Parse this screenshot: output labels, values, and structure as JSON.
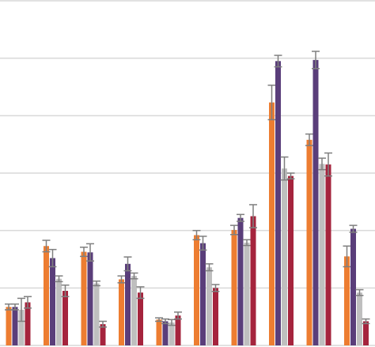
{
  "chart_data": {
    "type": "bar",
    "categories": [
      null,
      null,
      null,
      null,
      null,
      null,
      null,
      null,
      null,
      null
    ],
    "series": [
      {
        "color": "#ed7d31",
        "values": [
          0.67,
          1.73,
          1.63,
          1.15,
          0.45,
          1.92,
          2.01,
          4.23,
          3.58,
          1.55
        ],
        "errors": [
          0.05,
          0.1,
          0.08,
          0.06,
          0.03,
          0.08,
          0.08,
          0.3,
          0.1,
          0.18
        ]
      },
      {
        "color": "#5a3e7a",
        "values": [
          0.67,
          1.52,
          1.62,
          1.42,
          0.42,
          1.78,
          2.22,
          4.95,
          4.97,
          2.03
        ],
        "errors": [
          0.05,
          0.15,
          0.15,
          0.12,
          0.04,
          0.12,
          0.06,
          0.1,
          0.15,
          0.06
        ]
      },
      {
        "color": "#bfbfbf",
        "values": [
          0.62,
          1.16,
          1.08,
          1.21,
          0.4,
          1.36,
          1.79,
          3.08,
          3.16,
          0.92
        ],
        "errors": [
          0.2,
          0.05,
          0.04,
          0.05,
          0.05,
          0.06,
          0.05,
          0.2,
          0.1,
          0.05
        ]
      },
      {
        "color": "#a5243d",
        "values": [
          0.75,
          0.95,
          0.37,
          0.92,
          0.52,
          1.0,
          2.25,
          2.95,
          3.15,
          0.42
        ],
        "errors": [
          0.1,
          0.1,
          0.05,
          0.1,
          0.06,
          0.06,
          0.2,
          0.05,
          0.2,
          0.04
        ]
      }
    ],
    "ylim": [
      0,
      6
    ],
    "yticks": [
      0,
      1,
      2,
      3,
      4,
      5,
      6
    ],
    "grid": true,
    "error_color": "#7f7f7f"
  }
}
